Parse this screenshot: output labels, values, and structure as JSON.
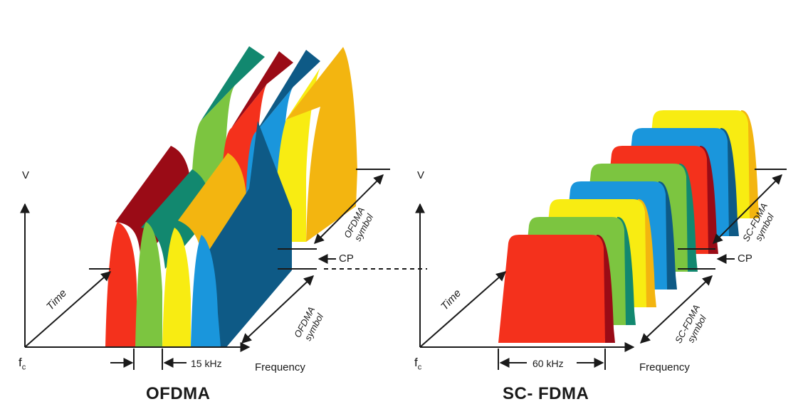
{
  "ofdma": {
    "axis_v": "V",
    "axis_time": "Time",
    "axis_fc": "f",
    "axis_fc_sub": "c",
    "axis_frequency": "Frequency",
    "spacing": "15 kHz",
    "cp": "CP",
    "symbol_line1": "OFDMA",
    "symbol_line2": "symbol",
    "title": "OFDMA"
  },
  "scfdma": {
    "axis_v": "V",
    "axis_time": "Time",
    "axis_fc": "f",
    "axis_fc_sub": "c",
    "axis_frequency": "Frequency",
    "spacing": "60 kHz",
    "cp": "CP",
    "symbol_line1": "SC-FDMA",
    "symbol_line2": "symbol",
    "title": "SC- FDMA"
  },
  "colors": {
    "red": "#f4311c",
    "dark_red": "#9a0b16",
    "green": "#7cc540",
    "teal": "#12886f",
    "yellow": "#f8ec12",
    "gold": "#f3b510",
    "blue": "#1a96dc",
    "navy": "#0e5a86"
  }
}
